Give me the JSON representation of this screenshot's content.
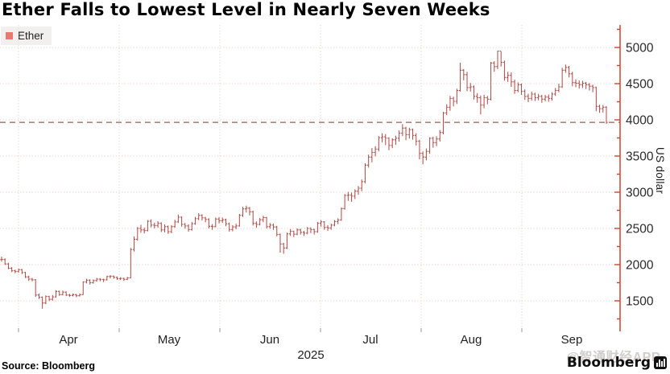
{
  "title": "Ether Falls to Lowest Level in Nearly Seven Weeks",
  "legend": {
    "label": "Ether"
  },
  "source": "Source: Bloomberg",
  "branding": {
    "bloomberg": "Bloomberg",
    "watermark": "@智通财经APP"
  },
  "colors": {
    "bar": "#b3514c",
    "axis": "#d8402c",
    "dashed_line": "#8d605c",
    "grid_h": "#e8cfcd",
    "grid_v": "#ddd6d0",
    "legend_swatch": "#e9786e",
    "tick_label": "#2b2b2b",
    "watermark": "#d0cfcd"
  },
  "chart_data": {
    "type": "ohlc",
    "title": "Ether Falls to Lowest Level in Nearly Seven Weeks",
    "series_name": "Ether",
    "ylabel": "US dollar",
    "unit": "US dollar",
    "year_label": "2025",
    "x_tick_labels": [
      "Apr",
      "May",
      "Jun",
      "Jul",
      "Aug",
      "Sep"
    ],
    "y_ticks": [
      5000,
      4500,
      4000,
      3500,
      3000,
      2500,
      2000,
      1500
    ],
    "minor_tick_step": 250,
    "ylim": [
      1080,
      5320
    ],
    "grid": true,
    "legend_position": "top-left",
    "last_price": 3965,
    "last_price_dashed_line": true,
    "bars_format": [
      "high",
      "low",
      "close"
    ],
    "bars": [
      [
        2110,
        2040,
        2070
      ],
      [
        2085,
        1995,
        2010
      ],
      [
        2025,
        1935,
        1950
      ],
      [
        1965,
        1895,
        1915
      ],
      [
        1930,
        1880,
        1905
      ],
      [
        1945,
        1890,
        1930
      ],
      [
        1940,
        1870,
        1890
      ],
      [
        1900,
        1815,
        1830
      ],
      [
        1845,
        1775,
        1800
      ],
      [
        1815,
        1770,
        1790
      ],
      [
        1800,
        1555,
        1580
      ],
      [
        1600,
        1525,
        1550
      ],
      [
        1560,
        1390,
        1470
      ],
      [
        1575,
        1455,
        1560
      ],
      [
        1570,
        1495,
        1520
      ],
      [
        1580,
        1505,
        1555
      ],
      [
        1645,
        1545,
        1630
      ],
      [
        1640,
        1570,
        1585
      ],
      [
        1640,
        1575,
        1620
      ],
      [
        1630,
        1565,
        1580
      ],
      [
        1595,
        1555,
        1575
      ],
      [
        1600,
        1560,
        1585
      ],
      [
        1595,
        1550,
        1570
      ],
      [
        1600,
        1560,
        1585
      ],
      [
        1770,
        1580,
        1760
      ],
      [
        1805,
        1740,
        1785
      ],
      [
        1795,
        1725,
        1750
      ],
      [
        1795,
        1735,
        1780
      ],
      [
        1815,
        1765,
        1800
      ],
      [
        1810,
        1770,
        1795
      ],
      [
        1805,
        1760,
        1790
      ],
      [
        1845,
        1780,
        1835
      ],
      [
        1855,
        1810,
        1840
      ],
      [
        1850,
        1805,
        1825
      ],
      [
        1835,
        1790,
        1805
      ],
      [
        1825,
        1785,
        1810
      ],
      [
        1820,
        1775,
        1795
      ],
      [
        1830,
        1785,
        1815
      ],
      [
        2230,
        1810,
        2210
      ],
      [
        2390,
        2180,
        2350
      ],
      [
        2520,
        2330,
        2500
      ],
      [
        2550,
        2440,
        2480
      ],
      [
        2510,
        2430,
        2470
      ],
      [
        2615,
        2460,
        2600
      ],
      [
        2625,
        2515,
        2545
      ],
      [
        2580,
        2500,
        2540
      ],
      [
        2600,
        2510,
        2570
      ],
      [
        2585,
        2450,
        2480
      ],
      [
        2555,
        2445,
        2525
      ],
      [
        2540,
        2425,
        2455
      ],
      [
        2545,
        2435,
        2525
      ],
      [
        2620,
        2510,
        2590
      ],
      [
        2690,
        2575,
        2655
      ],
      [
        2665,
        2525,
        2555
      ],
      [
        2575,
        2495,
        2535
      ],
      [
        2555,
        2455,
        2485
      ],
      [
        2590,
        2470,
        2565
      ],
      [
        2660,
        2550,
        2635
      ],
      [
        2710,
        2615,
        2680
      ],
      [
        2695,
        2610,
        2645
      ],
      [
        2660,
        2585,
        2625
      ],
      [
        2640,
        2500,
        2530
      ],
      [
        2560,
        2480,
        2525
      ],
      [
        2650,
        2515,
        2630
      ],
      [
        2655,
        2570,
        2605
      ],
      [
        2650,
        2575,
        2620
      ],
      [
        2635,
        2530,
        2565
      ],
      [
        2580,
        2455,
        2485
      ],
      [
        2545,
        2460,
        2520
      ],
      [
        2565,
        2490,
        2535
      ],
      [
        2700,
        2525,
        2680
      ],
      [
        2800,
        2660,
        2770
      ],
      [
        2815,
        2720,
        2780
      ],
      [
        2795,
        2680,
        2730
      ],
      [
        2745,
        2540,
        2570
      ],
      [
        2595,
        2510,
        2555
      ],
      [
        2645,
        2540,
        2620
      ],
      [
        2675,
        2585,
        2650
      ],
      [
        2660,
        2500,
        2525
      ],
      [
        2575,
        2495,
        2545
      ],
      [
        2565,
        2480,
        2520
      ],
      [
        2535,
        2390,
        2415
      ],
      [
        2430,
        2165,
        2285
      ],
      [
        2300,
        2150,
        2230
      ],
      [
        2440,
        2215,
        2425
      ],
      [
        2490,
        2395,
        2460
      ],
      [
        2470,
        2380,
        2420
      ],
      [
        2500,
        2405,
        2480
      ],
      [
        2495,
        2415,
        2445
      ],
      [
        2465,
        2395,
        2435
      ],
      [
        2520,
        2420,
        2500
      ],
      [
        2515,
        2435,
        2485
      ],
      [
        2495,
        2415,
        2455
      ],
      [
        2590,
        2440,
        2570
      ],
      [
        2615,
        2525,
        2590
      ],
      [
        2600,
        2480,
        2515
      ],
      [
        2545,
        2465,
        2505
      ],
      [
        2565,
        2480,
        2545
      ],
      [
        2615,
        2530,
        2595
      ],
      [
        2640,
        2560,
        2615
      ],
      [
        2790,
        2605,
        2775
      ],
      [
        2975,
        2760,
        2955
      ],
      [
        3005,
        2880,
        2960
      ],
      [
        2995,
        2870,
        2945
      ],
      [
        3040,
        2905,
        3015
      ],
      [
        3085,
        2965,
        3055
      ],
      [
        3175,
        3015,
        3145
      ],
      [
        3400,
        3125,
        3375
      ],
      [
        3520,
        3340,
        3485
      ],
      [
        3610,
        3415,
        3550
      ],
      [
        3635,
        3495,
        3595
      ],
      [
        3775,
        3565,
        3755
      ],
      [
        3815,
        3690,
        3765
      ],
      [
        3805,
        3650,
        3745
      ],
      [
        3760,
        3580,
        3645
      ],
      [
        3745,
        3610,
        3725
      ],
      [
        3780,
        3655,
        3745
      ],
      [
        3855,
        3700,
        3815
      ],
      [
        3940,
        3775,
        3885
      ],
      [
        3905,
        3720,
        3795
      ],
      [
        3890,
        3740,
        3865
      ],
      [
        3880,
        3725,
        3785
      ],
      [
        3815,
        3645,
        3705
      ],
      [
        3725,
        3455,
        3535
      ],
      [
        3565,
        3385,
        3485
      ],
      [
        3605,
        3440,
        3565
      ],
      [
        3760,
        3530,
        3745
      ],
      [
        3765,
        3615,
        3685
      ],
      [
        3775,
        3635,
        3735
      ],
      [
        3860,
        3700,
        3825
      ],
      [
        4110,
        3800,
        4095
      ],
      [
        4215,
        4065,
        4175
      ],
      [
        4330,
        4125,
        4295
      ],
      [
        4320,
        4185,
        4255
      ],
      [
        4430,
        4220,
        4405
      ],
      [
        4790,
        4390,
        4685
      ],
      [
        4700,
        4545,
        4625
      ],
      [
        4665,
        4395,
        4445
      ],
      [
        4510,
        4390,
        4455
      ],
      [
        4475,
        4280,
        4325
      ],
      [
        4370,
        4235,
        4305
      ],
      [
        4335,
        4075,
        4205
      ],
      [
        4345,
        4160,
        4305
      ],
      [
        4330,
        4215,
        4285
      ],
      [
        4800,
        4270,
        4785
      ],
      [
        4810,
        4665,
        4735
      ],
      [
        4955,
        4700,
        4950
      ],
      [
        4945,
        4735,
        4795
      ],
      [
        4820,
        4540,
        4585
      ],
      [
        4665,
        4525,
        4615
      ],
      [
        4655,
        4455,
        4525
      ],
      [
        4555,
        4360,
        4405
      ],
      [
        4520,
        4380,
        4485
      ],
      [
        4500,
        4345,
        4395
      ],
      [
        4420,
        4275,
        4325
      ],
      [
        4360,
        4245,
        4295
      ],
      [
        4390,
        4265,
        4355
      ],
      [
        4375,
        4260,
        4305
      ],
      [
        4360,
        4270,
        4325
      ],
      [
        4345,
        4235,
        4285
      ],
      [
        4345,
        4255,
        4315
      ],
      [
        4350,
        4250,
        4295
      ],
      [
        4380,
        4265,
        4355
      ],
      [
        4440,
        4330,
        4405
      ],
      [
        4500,
        4380,
        4455
      ],
      [
        4720,
        4440,
        4685
      ],
      [
        4765,
        4650,
        4725
      ],
      [
        4745,
        4585,
        4635
      ],
      [
        4665,
        4465,
        4515
      ],
      [
        4560,
        4450,
        4505
      ],
      [
        4545,
        4430,
        4485
      ],
      [
        4540,
        4440,
        4505
      ],
      [
        4525,
        4425,
        4485
      ],
      [
        4510,
        4405,
        4465
      ],
      [
        4485,
        4380,
        4445
      ],
      [
        4460,
        4120,
        4185
      ],
      [
        4210,
        4095,
        4155
      ],
      [
        4205,
        4100,
        4175
      ],
      [
        4190,
        3945,
        3965
      ]
    ]
  }
}
